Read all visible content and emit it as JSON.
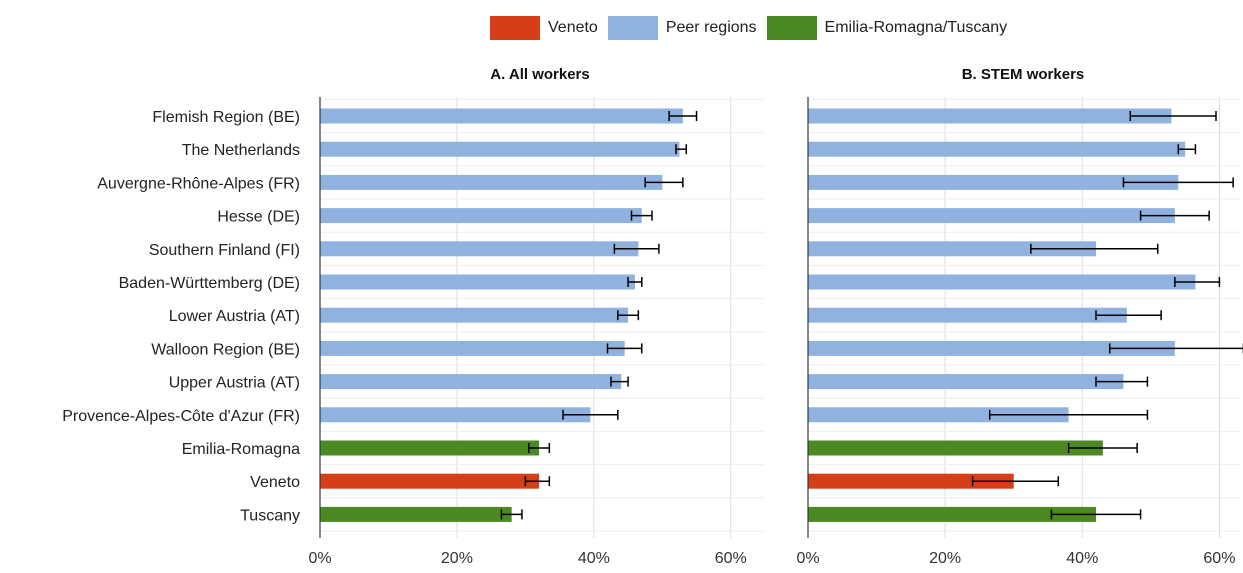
{
  "colors": {
    "veneto": "#d63e17",
    "peer": "#8fb2de",
    "er_tusc": "#4b8a23",
    "grid": "#dddddd",
    "axis": "#333333"
  },
  "legend": [
    {
      "label": "Veneto",
      "color": "#d63e17"
    },
    {
      "label": "Peer regions",
      "color": "#8fb2de"
    },
    {
      "label": "Emilia-Romagna/Tuscany",
      "color": "#4b8a23"
    }
  ],
  "chart_data": [
    {
      "type": "bar",
      "orientation": "horizontal",
      "title": "A. All workers",
      "categories": [
        "Flemish Region (BE)",
        "The Netherlands",
        "Auvergne-Rhône-Alpes (FR)",
        "Hesse (DE)",
        "Southern Finland (FI)",
        "Baden-Württemberg (DE)",
        "Lower Austria (AT)",
        "Walloon Region (BE)",
        "Upper Austria (AT)",
        "Provence-Alpes-Côte d'Azur (FR)",
        "Emilia-Romagna",
        "Veneto",
        "Tuscany"
      ],
      "groups": [
        "peer",
        "peer",
        "peer",
        "peer",
        "peer",
        "peer",
        "peer",
        "peer",
        "peer",
        "peer",
        "er_tusc",
        "veneto",
        "er_tusc"
      ],
      "values": [
        53,
        52.5,
        50,
        47,
        46.5,
        46,
        45,
        44.5,
        44,
        39.5,
        32,
        32,
        28
      ],
      "error_low": [
        51,
        52,
        47.5,
        45.5,
        43,
        45,
        43.5,
        42,
        42.5,
        35.5,
        30.5,
        30,
        26.5
      ],
      "error_high": [
        55,
        53.5,
        53,
        48.5,
        49.5,
        47,
        46.5,
        47,
        45,
        43.5,
        33.5,
        33.5,
        29.5
      ],
      "xlim": [
        0,
        65
      ],
      "xticks": [
        0,
        20,
        40,
        60
      ],
      "xtick_labels": [
        "0%",
        "20%",
        "40%",
        "60%"
      ],
      "grid": true
    },
    {
      "type": "bar",
      "orientation": "horizontal",
      "title": "B. STEM workers",
      "categories": [
        "Flemish Region (BE)",
        "The Netherlands",
        "Auvergne-Rhône-Alpes (FR)",
        "Hesse (DE)",
        "Southern Finland (FI)",
        "Baden-Württemberg (DE)",
        "Lower Austria (AT)",
        "Walloon Region (BE)",
        "Upper Austria (AT)",
        "Provence-Alpes-Côte d'Azur (FR)",
        "Emilia-Romagna",
        "Veneto",
        "Tuscany"
      ],
      "groups": [
        "peer",
        "peer",
        "peer",
        "peer",
        "peer",
        "peer",
        "peer",
        "peer",
        "peer",
        "peer",
        "er_tusc",
        "veneto",
        "er_tusc"
      ],
      "values": [
        53,
        55,
        54,
        53.5,
        42,
        56.5,
        46.5,
        53.5,
        46,
        38,
        43,
        30,
        42
      ],
      "error_low": [
        47,
        54,
        46,
        48.5,
        32.5,
        53.5,
        42,
        44,
        42,
        26.5,
        38,
        24,
        35.5
      ],
      "error_high": [
        59.5,
        56.5,
        62,
        58.5,
        51,
        60,
        51.5,
        63.5,
        49.5,
        49.5,
        48,
        36.5,
        48.5
      ],
      "xlim": [
        0,
        63
      ],
      "xticks": [
        0,
        20,
        40,
        60
      ],
      "xtick_labels": [
        "0%",
        "20%",
        "40%",
        "60%"
      ],
      "grid": true
    }
  ]
}
